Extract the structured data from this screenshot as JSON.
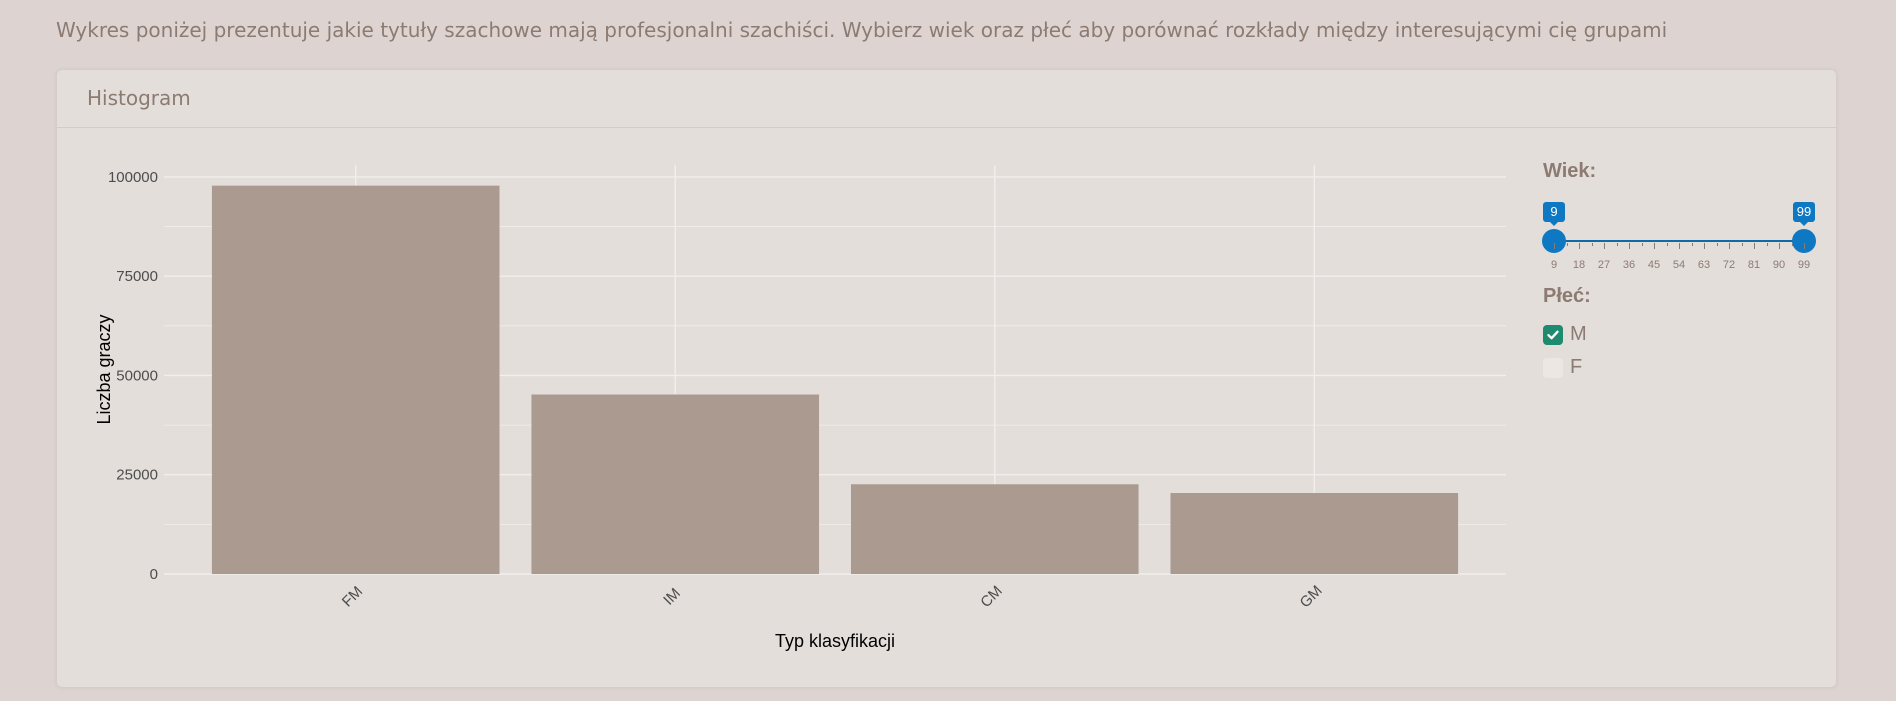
{
  "intro_text": "Wykres poniżej prezentuje jakie tytuły szachowe mają profesjonalni szachiści. Wybierz wiek oraz płeć aby porównać rozkłady między interesującymi cię grupami",
  "card": {
    "title": "Histogram"
  },
  "chart_data": {
    "type": "bar",
    "categories": [
      "FM",
      "IM",
      "CM",
      "GM"
    ],
    "values": [
      97800,
      45200,
      22600,
      20400
    ],
    "xlabel": "Typ klasyfikacji",
    "ylabel": "Liczba graczy",
    "ylim": [
      0,
      103000
    ],
    "yticks": [
      0,
      25000,
      50000,
      75000,
      100000
    ],
    "grid": true,
    "colors": {
      "bar": "#aa9a90",
      "panel": "#e3deda",
      "grid": "#f2eeec",
      "tick_text": "#4d4d4d",
      "axis_title": "#000000"
    }
  },
  "controls": {
    "age": {
      "label": "Wiek:",
      "min": 9,
      "max": 99,
      "from": 9,
      "to": 99,
      "ticks": [
        "9",
        "18",
        "27",
        "36",
        "45",
        "54",
        "63",
        "72",
        "81",
        "90",
        "99"
      ]
    },
    "gender": {
      "label": "Płeć:",
      "options": [
        {
          "label": "M",
          "checked": true
        },
        {
          "label": "F",
          "checked": false
        }
      ]
    }
  },
  "accent_color": "#0f78c3",
  "checkbox_color": "#1e8a6e"
}
